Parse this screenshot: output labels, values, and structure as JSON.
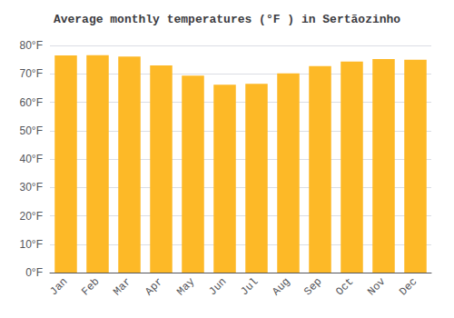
{
  "chart_data": {
    "type": "bar",
    "title": "Average monthly temperatures (°F ) in Sertãozinho",
    "categories": [
      "Jan",
      "Feb",
      "Mar",
      "Apr",
      "May",
      "Jun",
      "Jul",
      "Aug",
      "Sep",
      "Oct",
      "Nov",
      "Dec"
    ],
    "values": [
      76.5,
      76.6,
      76.1,
      73.0,
      69.4,
      66.2,
      66.5,
      70.2,
      72.7,
      74.3,
      75.2,
      75.0
    ],
    "color": "#FDB927",
    "ylim": [
      0,
      80
    ],
    "yticks": [
      {
        "value": 0,
        "label": "0°F"
      },
      {
        "value": 10,
        "label": "10°F"
      },
      {
        "value": 20,
        "label": "20°F"
      },
      {
        "value": 30,
        "label": "30°F"
      },
      {
        "value": 40,
        "label": "40°F"
      },
      {
        "value": 50,
        "label": "50°F"
      },
      {
        "value": 60,
        "label": "60°F"
      },
      {
        "value": 70,
        "label": "70°F"
      },
      {
        "value": 80,
        "label": "80°F"
      }
    ],
    "grid": true
  }
}
